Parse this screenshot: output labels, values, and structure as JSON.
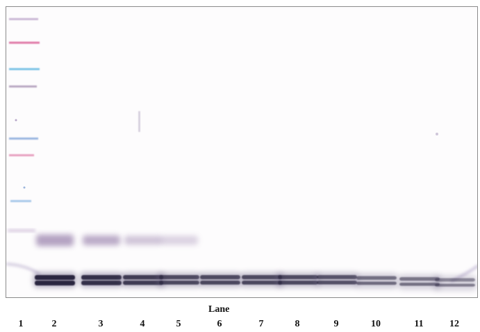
{
  "axis_title": "Lane",
  "lanes": [
    {
      "label": "1",
      "band_intensity": 0.0,
      "upper_intensity": 0.0
    },
    {
      "label": "2",
      "band_intensity": 1.0,
      "upper_intensity": 0.65
    },
    {
      "label": "3",
      "band_intensity": 0.9,
      "upper_intensity": 0.55
    },
    {
      "label": "4",
      "band_intensity": 0.8,
      "upper_intensity": 0.25
    },
    {
      "label": "5",
      "band_intensity": 0.7,
      "upper_intensity": 0.08
    },
    {
      "label": "6",
      "band_intensity": 0.7,
      "upper_intensity": 0.0
    },
    {
      "label": "7",
      "band_intensity": 0.7,
      "upper_intensity": 0.0
    },
    {
      "label": "8",
      "band_intensity": 0.68,
      "upper_intensity": 0.0
    },
    {
      "label": "9",
      "band_intensity": 0.62,
      "upper_intensity": 0.0
    },
    {
      "label": "10",
      "band_intensity": 0.42,
      "upper_intensity": 0.0
    },
    {
      "label": "11",
      "band_intensity": 0.38,
      "upper_intensity": 0.0
    },
    {
      "label": "12",
      "band_intensity": 0.28,
      "upper_intensity": 0.0
    }
  ],
  "colors": {
    "band": "#2b2840",
    "band_haze": "#6d6486",
    "upper_band": "#8a6fa0",
    "ladder_pink": "#e07aa8",
    "ladder_blue": "#7ec4e6",
    "ladder_grey": "#b9a9c2",
    "frame": "#8a8a8a"
  }
}
